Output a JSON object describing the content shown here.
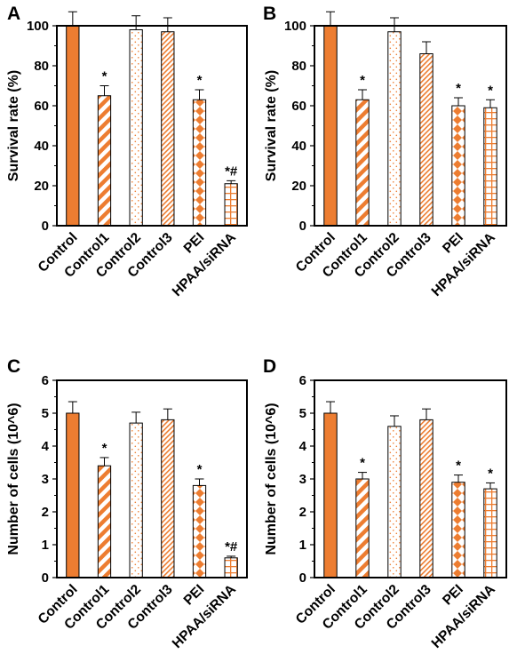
{
  "chart_data": [
    {
      "panel": "A",
      "type": "bar",
      "ylabel": "Survival rate (%)",
      "ylim": [
        0,
        100
      ],
      "yticks": [
        0,
        20,
        40,
        60,
        80,
        100
      ],
      "categories": [
        "Control",
        "Control1",
        "Control2",
        "Control3",
        "PEI",
        "HPAA/siRNA"
      ],
      "values": [
        100,
        65,
        98,
        97,
        63,
        21
      ],
      "errors": [
        7,
        5,
        7,
        7,
        5,
        1.5
      ],
      "annotations": [
        "",
        "*",
        "",
        "",
        "*",
        "*#"
      ]
    },
    {
      "panel": "B",
      "type": "bar",
      "ylabel": "Survival rate (%)",
      "ylim": [
        0,
        100
      ],
      "yticks": [
        0,
        20,
        40,
        60,
        80,
        100
      ],
      "categories": [
        "Control",
        "Control1",
        "Control2",
        "Control3",
        "PEI",
        "HPAA/siRNA"
      ],
      "values": [
        100,
        63,
        97,
        86,
        60,
        59
      ],
      "errors": [
        7,
        5,
        7,
        6,
        4,
        4
      ],
      "annotations": [
        "",
        "*",
        "",
        "",
        "*",
        "*"
      ]
    },
    {
      "panel": "C",
      "type": "bar",
      "ylabel": "Number of cells (10^6)",
      "ylim": [
        0,
        6
      ],
      "yticks": [
        0,
        1,
        2,
        3,
        4,
        5,
        6
      ],
      "categories": [
        "Control",
        "Control1",
        "Control2",
        "Control3",
        "PEI",
        "HPAA/siRNA"
      ],
      "values": [
        5.0,
        3.4,
        4.7,
        4.8,
        2.8,
        0.6
      ],
      "errors": [
        0.35,
        0.25,
        0.33,
        0.33,
        0.2,
        0.05
      ],
      "annotations": [
        "",
        "*",
        "",
        "",
        "*",
        "*#"
      ]
    },
    {
      "panel": "D",
      "type": "bar",
      "ylabel": "Number of cells (10^6)",
      "ylim": [
        0,
        6
      ],
      "yticks": [
        0,
        1,
        2,
        3,
        4,
        5,
        6
      ],
      "categories": [
        "Control",
        "Control1",
        "Control2",
        "Control3",
        "PEI",
        "HPAA/siRNA"
      ],
      "values": [
        5.0,
        3.0,
        4.6,
        4.8,
        2.9,
        2.7
      ],
      "errors": [
        0.35,
        0.2,
        0.32,
        0.33,
        0.22,
        0.18
      ],
      "annotations": [
        "",
        "*",
        "",
        "",
        "*",
        "*"
      ]
    }
  ],
  "colors": {
    "bar": "#ed7d31",
    "axis": "#000000"
  },
  "bar_patterns": [
    "solid",
    "wide-diagonal",
    "dots",
    "narrow-diagonal",
    "diamonds",
    "grid"
  ]
}
